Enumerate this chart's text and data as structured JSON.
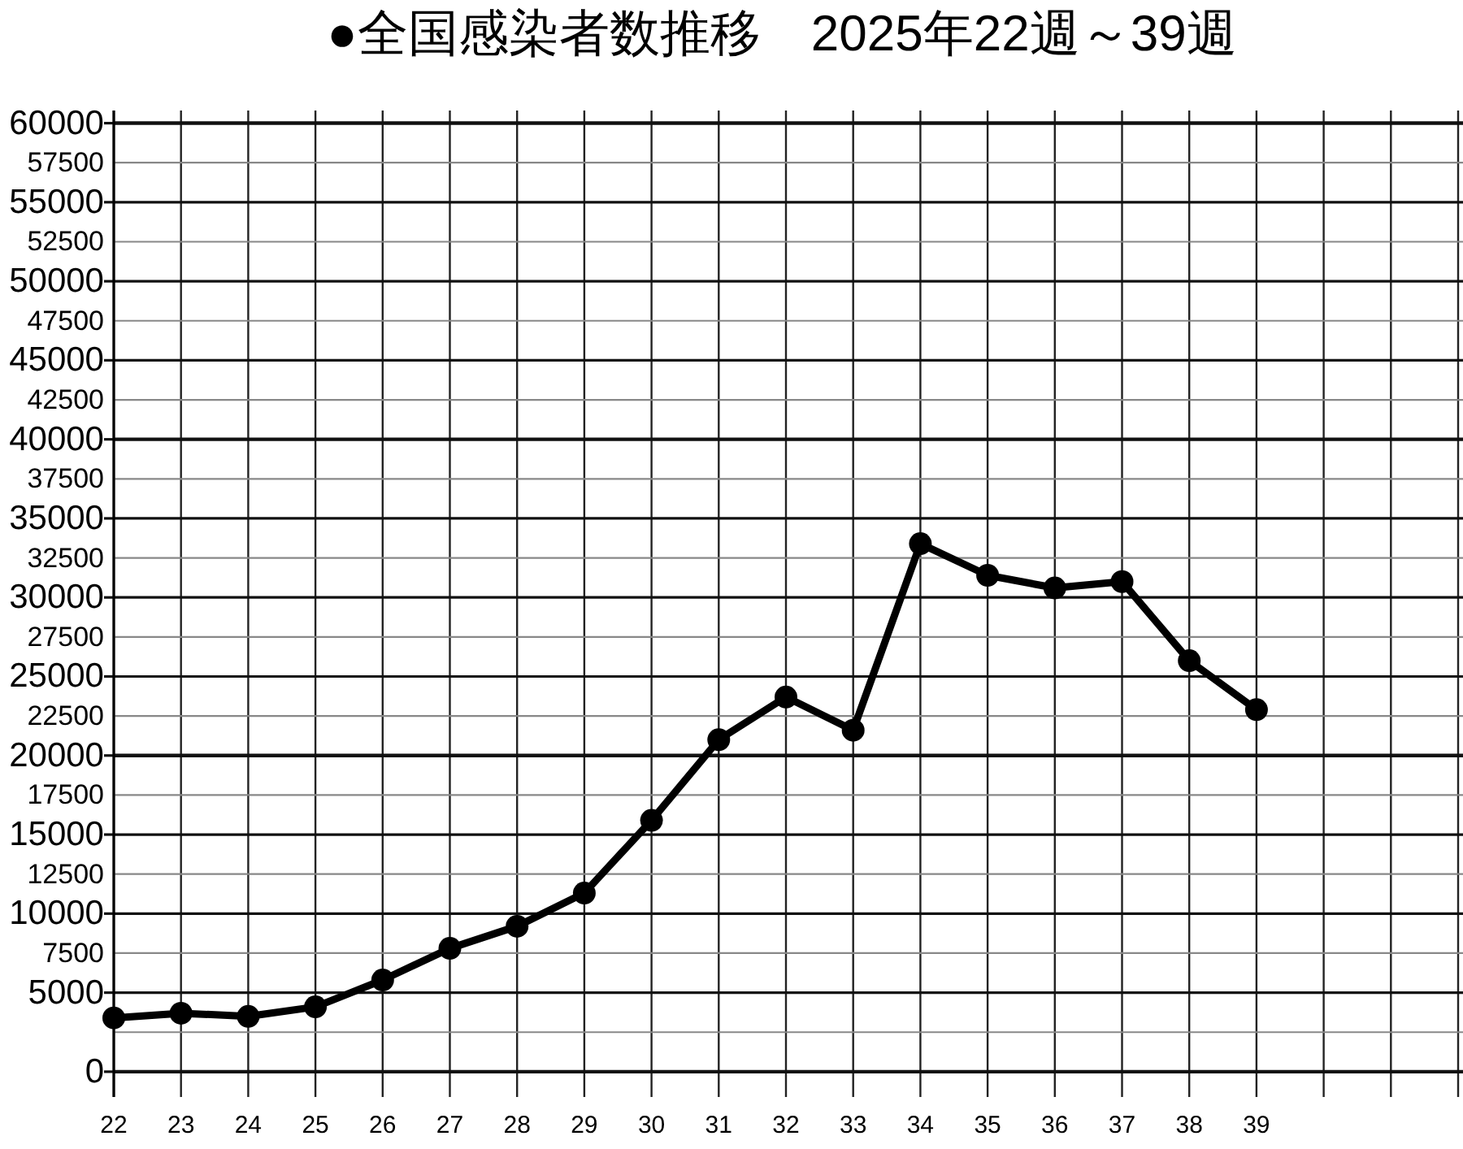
{
  "chart_data": {
    "type": "line",
    "title": "●全国感染者数推移　2025年22週～39週",
    "x": [
      22,
      23,
      24,
      25,
      26,
      27,
      28,
      29,
      30,
      31,
      32,
      33,
      34,
      35,
      36,
      37,
      38,
      39
    ],
    "values": [
      3400,
      3700,
      3500,
      4100,
      5800,
      7800,
      9200,
      11300,
      15900,
      21000,
      23700,
      21600,
      33400,
      31400,
      30600,
      31000,
      26000,
      22900
    ],
    "color": "#000000",
    "marker": "circle",
    "line_style": "solid",
    "grid": true,
    "xlim": [
      22,
      42
    ],
    "xticks": [
      22,
      23,
      24,
      25,
      26,
      27,
      28,
      29,
      30,
      31,
      32,
      33,
      34,
      35,
      36,
      37,
      38,
      39,
      {
        "value": 40,
        "label": null
      },
      {
        "value": 41,
        "label": null
      },
      {
        "value": 42,
        "label": null
      }
    ],
    "ylim": [
      -1600,
      60800
    ],
    "yticks": [
      0,
      {
        "value": 2500,
        "label": null
      },
      5000,
      7500,
      10000,
      12500,
      15000,
      17500,
      20000,
      22500,
      25000,
      27500,
      30000,
      32500,
      35000,
      37500,
      40000,
      42500,
      45000,
      47500,
      50000,
      52500,
      55000,
      57500,
      60000
    ]
  }
}
